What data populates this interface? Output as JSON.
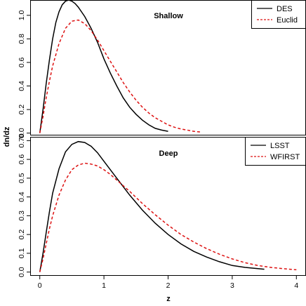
{
  "chart_data": [
    {
      "type": "line",
      "title": "Shallow",
      "xlabel": "z",
      "ylabel": "dn/dz",
      "xlim": [
        -0.15,
        4.15
      ],
      "ylim": [
        -0.02,
        1.13
      ],
      "yticks": [
        0.0,
        0.2,
        0.4,
        0.6,
        0.8,
        1.0
      ],
      "ytick_labels": [
        "0.0",
        "0.2",
        "0.4",
        "0.6",
        "0.8",
        "1.0"
      ],
      "grid": false,
      "legend_position": "top-right",
      "series": [
        {
          "name": "DES",
          "color": "#000000",
          "dash": "solid",
          "x": [
            0,
            0.05,
            0.1,
            0.15,
            0.2,
            0.25,
            0.3,
            0.35,
            0.4,
            0.45,
            0.5,
            0.55,
            0.6,
            0.7,
            0.8,
            0.9,
            1.0,
            1.1,
            1.2,
            1.3,
            1.4,
            1.5,
            1.6,
            1.7,
            1.8,
            1.9,
            2.0
          ],
          "y": [
            0.0,
            0.2,
            0.42,
            0.62,
            0.8,
            0.94,
            1.03,
            1.09,
            1.12,
            1.13,
            1.12,
            1.1,
            1.07,
            0.99,
            0.89,
            0.77,
            0.63,
            0.51,
            0.4,
            0.3,
            0.22,
            0.16,
            0.11,
            0.07,
            0.04,
            0.025,
            0.015
          ]
        },
        {
          "name": "Euclid",
          "color": "#dd1111",
          "dash": "dashed",
          "x": [
            0,
            0.05,
            0.1,
            0.15,
            0.2,
            0.3,
            0.4,
            0.5,
            0.6,
            0.7,
            0.8,
            0.9,
            1.0,
            1.1,
            1.2,
            1.3,
            1.4,
            1.5,
            1.6,
            1.7,
            1.8,
            1.9,
            2.0,
            2.1,
            2.2,
            2.3,
            2.4,
            2.5
          ],
          "y": [
            0.0,
            0.14,
            0.3,
            0.44,
            0.57,
            0.76,
            0.89,
            0.95,
            0.96,
            0.93,
            0.87,
            0.79,
            0.7,
            0.61,
            0.52,
            0.43,
            0.35,
            0.28,
            0.22,
            0.17,
            0.13,
            0.1,
            0.07,
            0.05,
            0.035,
            0.025,
            0.015,
            0.01
          ]
        }
      ]
    },
    {
      "type": "line",
      "title": "Deep",
      "xlabel": "z",
      "ylabel": "dn/dz",
      "xlim": [
        -0.15,
        4.15
      ],
      "ylim": [
        -0.02,
        0.72
      ],
      "yticks": [
        0.0,
        0.1,
        0.2,
        0.3,
        0.4,
        0.5,
        0.6,
        0.7
      ],
      "ytick_labels": [
        "0.0",
        "0.1",
        "0.2",
        "0.3",
        "0.4",
        "0.5",
        "0.6",
        "0.70"
      ],
      "xticks": [
        0,
        1,
        2,
        3,
        4
      ],
      "xtick_labels": [
        "0",
        "1",
        "2",
        "3",
        "4"
      ],
      "grid": false,
      "legend_position": "top-right",
      "series": [
        {
          "name": "LSST",
          "color": "#000000",
          "dash": "solid",
          "x": [
            0,
            0.05,
            0.1,
            0.15,
            0.2,
            0.3,
            0.4,
            0.5,
            0.6,
            0.7,
            0.8,
            0.9,
            1.0,
            1.1,
            1.2,
            1.4,
            1.6,
            1.8,
            2.0,
            2.2,
            2.4,
            2.6,
            2.8,
            3.0,
            3.2,
            3.5
          ],
          "y": [
            0.0,
            0.1,
            0.21,
            0.32,
            0.42,
            0.55,
            0.64,
            0.68,
            0.695,
            0.69,
            0.67,
            0.635,
            0.59,
            0.545,
            0.5,
            0.41,
            0.33,
            0.26,
            0.2,
            0.15,
            0.11,
            0.08,
            0.055,
            0.035,
            0.025,
            0.015
          ]
        },
        {
          "name": "WFIRST",
          "color": "#dd1111",
          "dash": "dashed",
          "x": [
            0,
            0.05,
            0.1,
            0.15,
            0.2,
            0.3,
            0.4,
            0.5,
            0.6,
            0.7,
            0.8,
            0.9,
            1.0,
            1.1,
            1.2,
            1.4,
            1.6,
            1.8,
            2.0,
            2.2,
            2.4,
            2.6,
            2.8,
            3.0,
            3.2,
            3.4,
            3.6,
            3.8,
            4.0
          ],
          "y": [
            0.0,
            0.07,
            0.15,
            0.23,
            0.3,
            0.41,
            0.49,
            0.545,
            0.57,
            0.58,
            0.575,
            0.565,
            0.545,
            0.52,
            0.49,
            0.43,
            0.365,
            0.305,
            0.25,
            0.2,
            0.16,
            0.125,
            0.095,
            0.07,
            0.05,
            0.035,
            0.025,
            0.018,
            0.012
          ]
        }
      ]
    }
  ]
}
